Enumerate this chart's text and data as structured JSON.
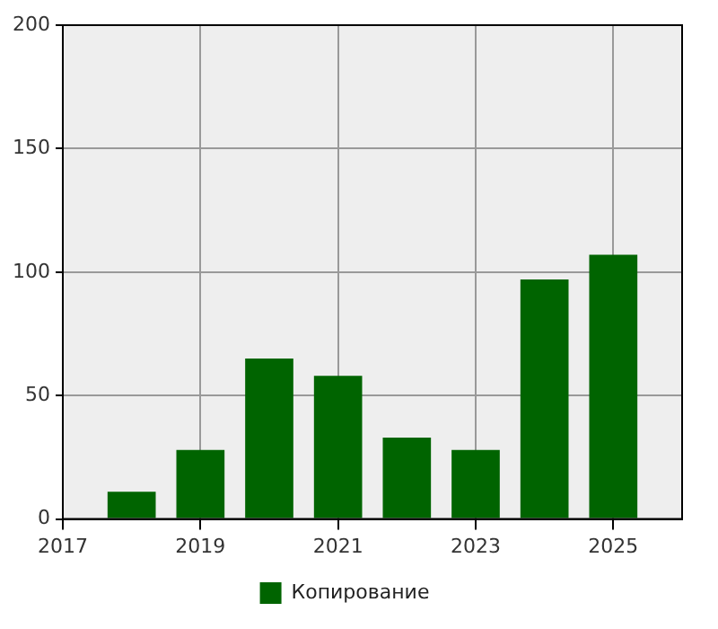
{
  "chart_data": {
    "type": "bar",
    "x": [
      2018,
      2019,
      2020,
      2021,
      2022,
      2023,
      2024,
      2025
    ],
    "series": [
      {
        "name": "Копирование",
        "color": "#006400",
        "values": [
          11,
          28,
          65,
          58,
          33,
          28,
          97,
          107
        ]
      }
    ],
    "xlim": [
      2017,
      2026
    ],
    "xticks": [
      2017,
      2019,
      2021,
      2023,
      2025
    ],
    "ylim": [
      0,
      200
    ],
    "yticks": [
      0,
      50,
      100,
      150,
      200
    ],
    "grid": true,
    "legend": "bottom"
  }
}
